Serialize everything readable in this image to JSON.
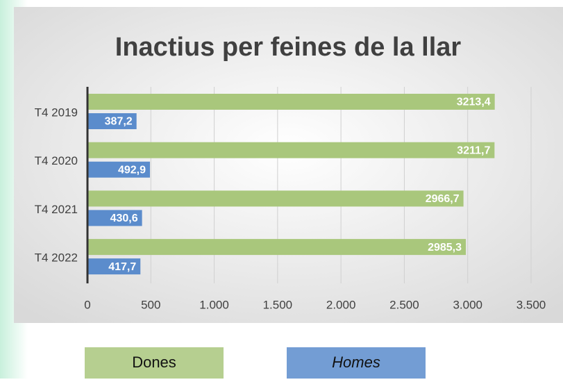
{
  "chart_data": {
    "type": "hbar",
    "title": "Inactius per feines de la llar",
    "categories": [
      "T4 2019",
      "T4 2020",
      "T4 2021",
      "T4 2022"
    ],
    "series": [
      {
        "name": "Dones",
        "color": "#a9c77c",
        "values": [
          3213.4,
          3211.7,
          2966.7,
          2985.3
        ],
        "value_labels": [
          "3213,4",
          "3211,7",
          "2966,7",
          "2985,3"
        ]
      },
      {
        "name": "Homes",
        "color": "#5b8ccc",
        "values": [
          387.2,
          492.9,
          430.6,
          417.7
        ],
        "value_labels": [
          "387,2",
          "492,9",
          "430,6",
          "417,7"
        ]
      }
    ],
    "xlim": [
      0,
      3500
    ],
    "xticks": [
      0,
      500,
      {
        "value": 1000,
        "label": "1.000"
      },
      {
        "value": 1500,
        "label": "1.500"
      },
      {
        "value": 2000,
        "label": "2.000"
      },
      {
        "value": 2500,
        "label": "2.500"
      },
      {
        "value": 3000,
        "label": "3.000"
      },
      {
        "value": 3500,
        "label": "3.500"
      }
    ],
    "grid": true
  }
}
